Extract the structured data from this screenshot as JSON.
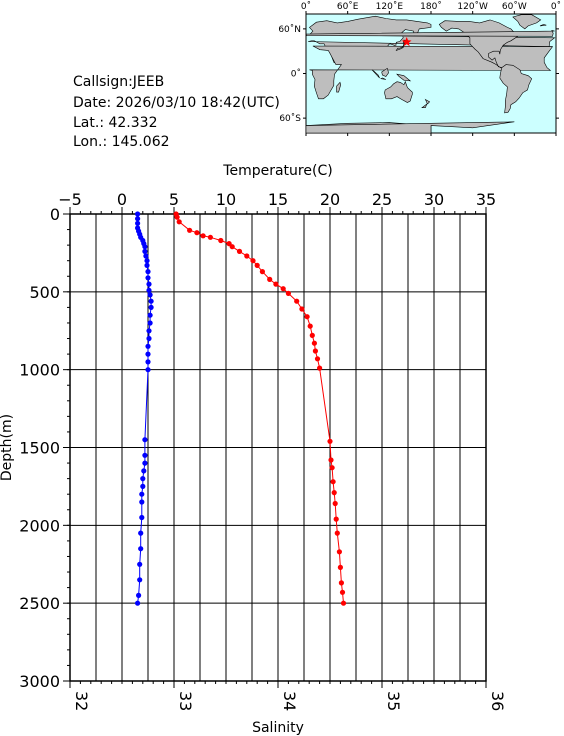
{
  "info": {
    "callsign": "Callsign:JEEB",
    "date": "Date:  2026/03/10 18:42(UTC)",
    "lat": "Lat.:   42.332",
    "lon": "Lon.:  145.062"
  },
  "map": {
    "lon_labels": [
      "0˚",
      "60˚E",
      "120˚E",
      "180˚",
      "120˚W",
      "60˚W",
      "0˚"
    ],
    "lat_labels": [
      "60˚N",
      "0˚",
      "60˚S"
    ],
    "ocean_color": "#ccffff",
    "land_color": "#bebebe",
    "marker_color": "#ff0000",
    "marker_lat": 42.332,
    "marker_lon": 145.062
  },
  "chart_data": {
    "type": "scatter",
    "ylabel": "Depth(m)",
    "ylim": [
      0,
      3000
    ],
    "y_inverted": true,
    "yticks": [
      "0",
      "500",
      "1000",
      "1500",
      "2000",
      "2500",
      "3000"
    ],
    "top_axis": {
      "label": "Temperature(C)",
      "lim": [
        -5,
        35
      ],
      "ticks": [
        "−5",
        "0",
        "5",
        "10",
        "15",
        "20",
        "25",
        "30",
        "35"
      ]
    },
    "bottom_axis": {
      "label": "Salinity",
      "lim": [
        32,
        36
      ],
      "ticks": [
        "32",
        "33",
        "34",
        "35",
        "36"
      ]
    },
    "grid": true,
    "series": [
      {
        "color": "#0000ff",
        "axis": "bottom",
        "points": [
          [
            32.65,
            0
          ],
          [
            32.65,
            30
          ],
          [
            32.65,
            60
          ],
          [
            32.65,
            90
          ],
          [
            32.66,
            110
          ],
          [
            32.67,
            130
          ],
          [
            32.68,
            150
          ],
          [
            32.7,
            170
          ],
          [
            32.71,
            190
          ],
          [
            32.72,
            210
          ],
          [
            32.72,
            240
          ],
          [
            32.73,
            270
          ],
          [
            32.74,
            300
          ],
          [
            32.74,
            330
          ],
          [
            32.75,
            370
          ],
          [
            32.75,
            410
          ],
          [
            32.76,
            450
          ],
          [
            32.76,
            490
          ],
          [
            32.77,
            520
          ],
          [
            32.78,
            560
          ],
          [
            32.78,
            600
          ],
          [
            32.77,
            650
          ],
          [
            32.77,
            700
          ],
          [
            32.76,
            750
          ],
          [
            32.76,
            800
          ],
          [
            32.75,
            850
          ],
          [
            32.75,
            900
          ],
          [
            32.75,
            950
          ],
          [
            32.75,
            1000
          ],
          [
            32.72,
            1450
          ],
          [
            32.72,
            1550
          ],
          [
            32.72,
            1600
          ],
          [
            32.71,
            1650
          ],
          [
            32.7,
            1700
          ],
          [
            32.7,
            1750
          ],
          [
            32.69,
            1800
          ],
          [
            32.69,
            1850
          ],
          [
            32.69,
            1950
          ],
          [
            32.68,
            2050
          ],
          [
            32.68,
            2150
          ],
          [
            32.67,
            2250
          ],
          [
            32.67,
            2350
          ],
          [
            32.66,
            2450
          ],
          [
            32.65,
            2500
          ]
        ]
      },
      {
        "color": "#ff0000",
        "axis": "top",
        "points": [
          [
            5.2,
            0
          ],
          [
            5.3,
            20
          ],
          [
            5.5,
            50
          ],
          [
            6.5,
            105
          ],
          [
            7.2,
            120
          ],
          [
            7.8,
            140
          ],
          [
            8.5,
            150
          ],
          [
            9.5,
            170
          ],
          [
            10.3,
            190
          ],
          [
            10.6,
            210
          ],
          [
            11.3,
            240
          ],
          [
            12.0,
            270
          ],
          [
            12.6,
            300
          ],
          [
            13.0,
            330
          ],
          [
            13.5,
            370
          ],
          [
            14.2,
            420
          ],
          [
            14.8,
            450
          ],
          [
            15.5,
            480
          ],
          [
            16.0,
            510
          ],
          [
            16.8,
            560
          ],
          [
            17.3,
            610
          ],
          [
            17.8,
            660
          ],
          [
            18.1,
            720
          ],
          [
            18.3,
            780
          ],
          [
            18.5,
            830
          ],
          [
            18.6,
            880
          ],
          [
            18.8,
            930
          ],
          [
            19.0,
            990
          ],
          [
            20.0,
            1460
          ],
          [
            20.1,
            1580
          ],
          [
            20.2,
            1630
          ],
          [
            20.3,
            1720
          ],
          [
            20.4,
            1790
          ],
          [
            20.5,
            1860
          ],
          [
            20.6,
            1960
          ],
          [
            20.7,
            2050
          ],
          [
            20.9,
            2170
          ],
          [
            21.0,
            2270
          ],
          [
            21.1,
            2370
          ],
          [
            21.2,
            2430
          ],
          [
            21.3,
            2500
          ]
        ]
      }
    ]
  }
}
